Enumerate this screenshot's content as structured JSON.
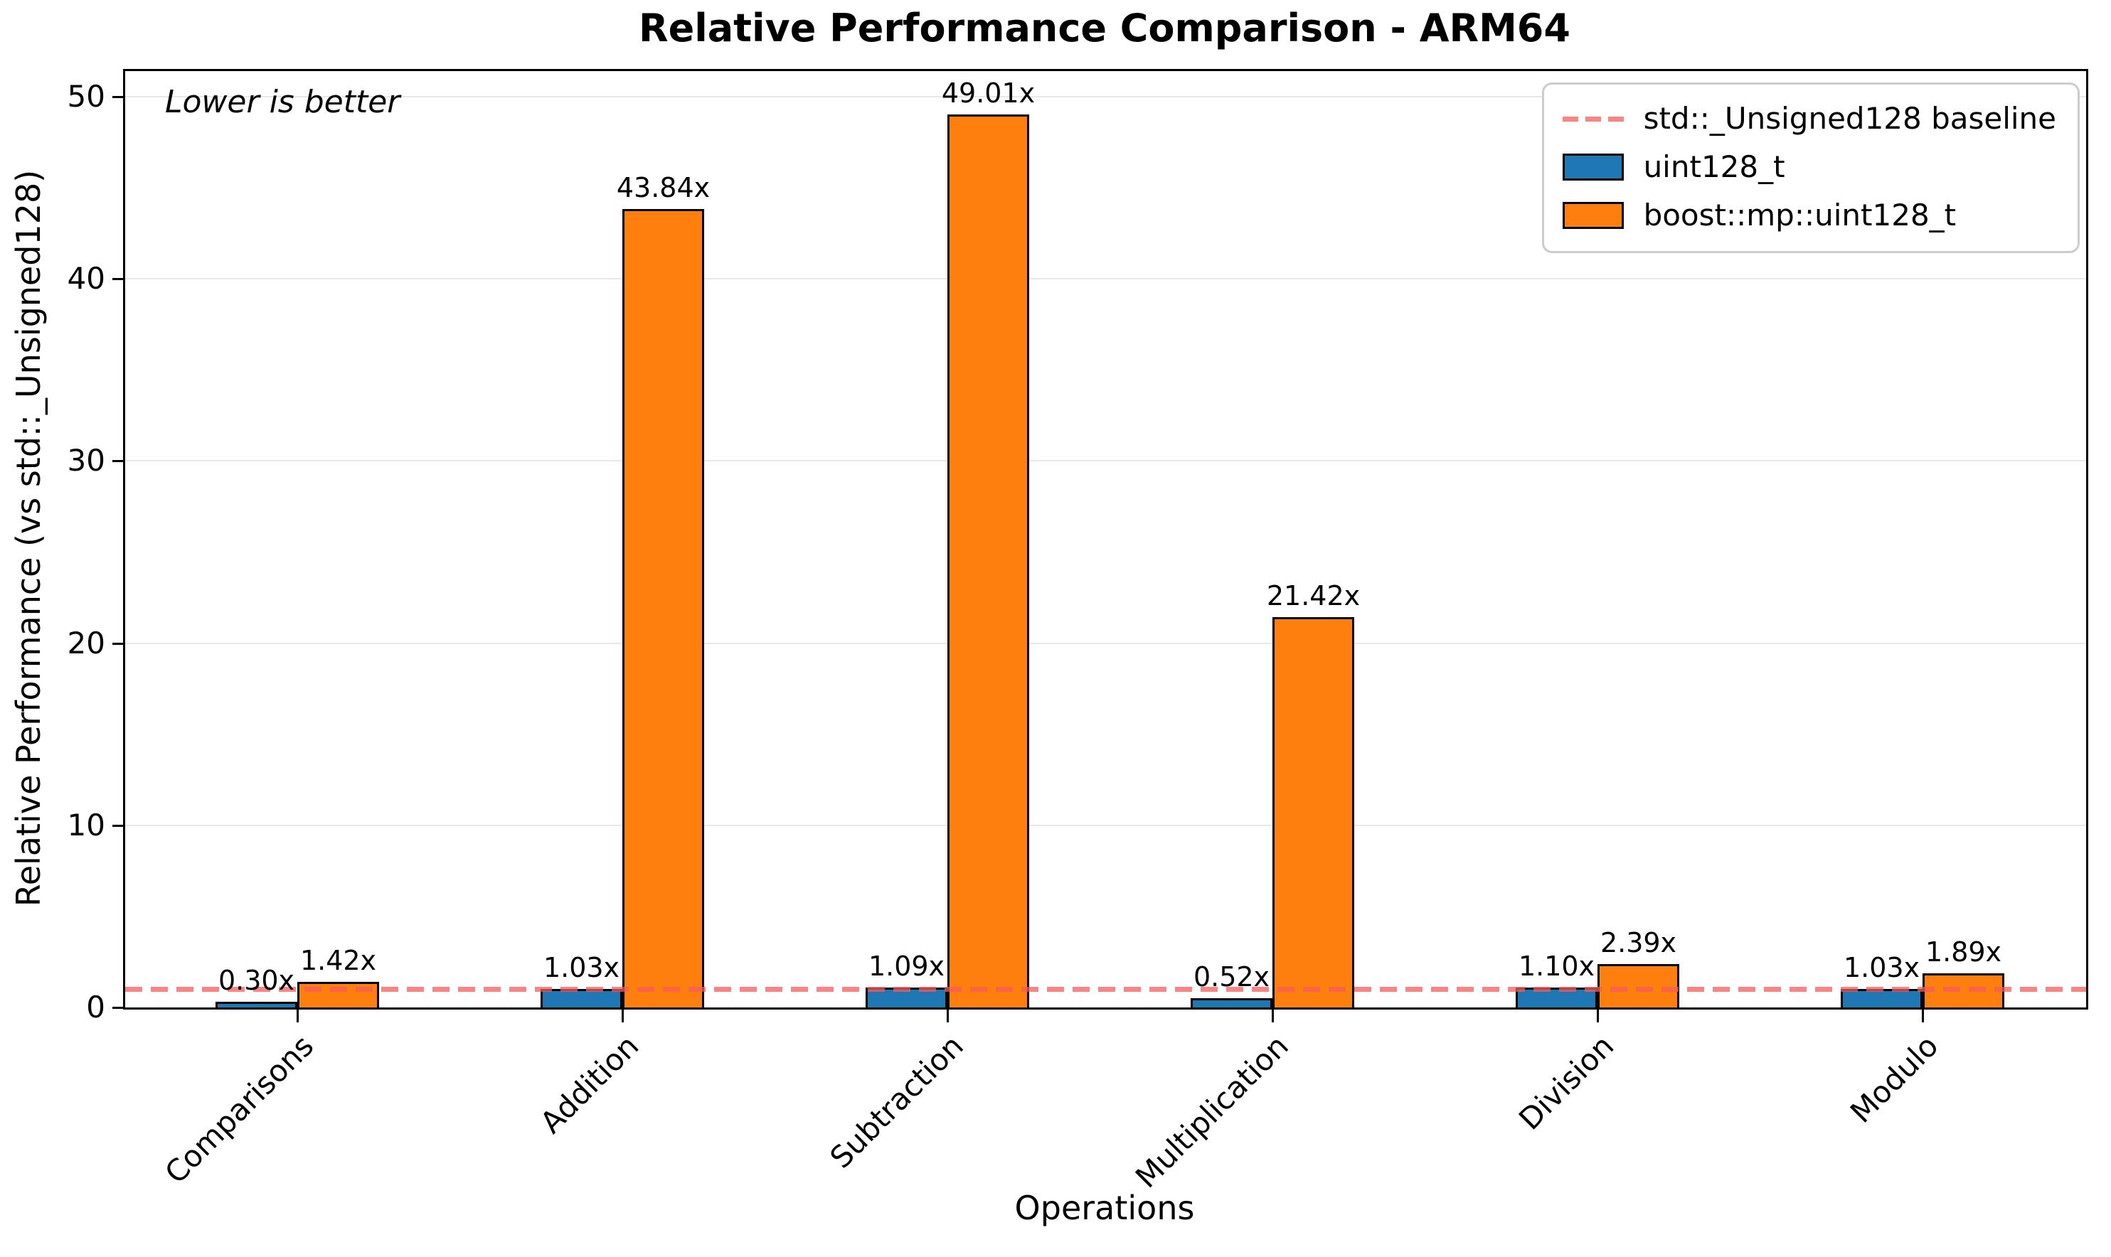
{
  "chart_data": {
    "type": "bar",
    "title": "Relative Performance Comparison - ARM64",
    "xlabel": "Operations",
    "ylabel": "Relative Performance (vs std::_Unsigned128)",
    "annotation": "Lower is better",
    "categories": [
      "Comparisons",
      "Addition",
      "Subtraction",
      "Multiplication",
      "Division",
      "Modulo"
    ],
    "series": [
      {
        "name": "uint128_t",
        "color": "#1f77b4",
        "values": [
          0.3,
          1.03,
          1.09,
          0.52,
          1.1,
          1.03
        ],
        "value_labels": [
          "0.30x",
          "1.03x",
          "1.09x",
          "0.52x",
          "1.10x",
          "1.03x"
        ]
      },
      {
        "name": "boost::mp::uint128_t",
        "color": "#ff7f0e",
        "values": [
          1.42,
          43.84,
          49.01,
          21.42,
          2.39,
          1.89
        ],
        "value_labels": [
          "1.42x",
          "43.84x",
          "49.01x",
          "21.42x",
          "2.39x",
          "1.89x"
        ]
      }
    ],
    "baseline": {
      "value": 1,
      "label": "std::_Unsigned128 baseline",
      "color": "rgba(249,90,90,0.75)"
    },
    "yticks": [
      0,
      10,
      20,
      30,
      40,
      50
    ],
    "ylim": [
      0,
      51.4
    ],
    "grid": true,
    "legend_position": "upper right",
    "bar_edge_color": "#000000",
    "lower_is_better": true
  }
}
